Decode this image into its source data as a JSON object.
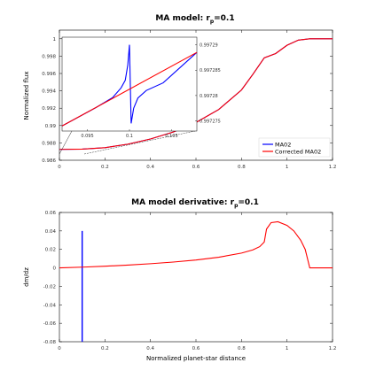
{
  "chart_data": [
    {
      "type": "line",
      "title": "MA model: r",
      "title_sub": "p",
      "title_suffix": "=0.1",
      "xlabel": "",
      "ylabel": "Normalized flux",
      "xlim": [
        0,
        1.2
      ],
      "ylim": [
        0.986,
        1.001
      ],
      "xticks": [
        "0",
        "0.2",
        "0.4",
        "0.6",
        "0.8",
        "1",
        "1.2"
      ],
      "yticks": [
        "0.986",
        "0.988",
        "0.99",
        "0.992",
        "0.994",
        "0.996",
        "0.998",
        "1"
      ],
      "yticks_values": [
        0.986,
        0.988,
        0.99,
        0.992,
        0.994,
        0.996,
        0.998,
        1.0
      ],
      "legend": {
        "position": "bottom-right",
        "entries": [
          {
            "name": "MA02",
            "color": "#0000ff"
          },
          {
            "name": "Corrected MA02",
            "color": "#ff0000"
          }
        ]
      },
      "series": [
        {
          "name": "MA02",
          "color": "#0000ff",
          "x": [
            0,
            0.1,
            0.2,
            0.3,
            0.4,
            0.5,
            0.6,
            0.7,
            0.8,
            0.85,
            0.9,
            0.95,
            1.0,
            1.05,
            1.1,
            1.2
          ],
          "y": [
            0.98725,
            0.98728,
            0.98745,
            0.98785,
            0.98845,
            0.98925,
            0.99035,
            0.99185,
            0.9941,
            0.9959,
            0.9978,
            0.9983,
            0.99925,
            0.99985,
            1.0,
            1.0
          ]
        },
        {
          "name": "Corrected MA02",
          "color": "#ff0000",
          "x": [
            0,
            0.1,
            0.2,
            0.3,
            0.4,
            0.5,
            0.6,
            0.7,
            0.8,
            0.85,
            0.9,
            0.95,
            1.0,
            1.05,
            1.1,
            1.2
          ],
          "y": [
            0.98725,
            0.98728,
            0.98745,
            0.98785,
            0.98845,
            0.98925,
            0.99035,
            0.99185,
            0.9941,
            0.9959,
            0.9978,
            0.9983,
            0.99925,
            0.99985,
            1.0,
            1.0
          ]
        }
      ],
      "inset": {
        "xticks": [
          "0.095",
          "0.1",
          "0.105"
        ],
        "yticks": [
          "0.997275",
          "0.99728",
          "0.997285",
          "0.99729"
        ],
        "xlim": [
          0.092,
          0.108
        ],
        "ylim": [
          0.997273,
          0.9972915
        ],
        "red_line": {
          "x": [
            0.092,
            0.108
          ],
          "y": [
            0.997274,
            0.9972885
          ]
        },
        "blue_line": {
          "x": [
            0.092,
            0.096,
            0.098,
            0.099,
            0.0995,
            0.0998,
            0.1,
            0.1002,
            0.1005,
            0.101,
            0.102,
            0.104,
            0.108
          ],
          "y": [
            0.997274,
            0.9972776,
            0.9972796,
            0.9972815,
            0.997283,
            0.997286,
            0.99729,
            0.9972745,
            0.9972775,
            0.9972795,
            0.997281,
            0.9972825,
            0.9972885
          ]
        }
      }
    },
    {
      "type": "line",
      "title": "MA model derivative: r",
      "title_sub": "p",
      "title_suffix": "=0.1",
      "xlabel": "Normalized planet-star distance",
      "ylabel": "dm/dz",
      "xlim": [
        0,
        1.2
      ],
      "ylim": [
        -0.08,
        0.06
      ],
      "xticks": [
        "0",
        "0.2",
        "0.4",
        "0.6",
        "0.8",
        "1",
        "1.2"
      ],
      "yticks": [
        "-0.08",
        "-0.06",
        "-0.04",
        "-0.02",
        "0",
        "0.02",
        "0.04",
        "0.06"
      ],
      "yticks_values": [
        -0.08,
        -0.06,
        -0.04,
        -0.02,
        0,
        0.02,
        0.04,
        0.06
      ],
      "series": [
        {
          "name": "MA02",
          "color": "#0000ff",
          "x": [
            0.1,
            0.1
          ],
          "y": [
            -0.08,
            0.04
          ]
        },
        {
          "name": "Corrected MA02",
          "color": "#ff0000",
          "x": [
            0,
            0.1,
            0.2,
            0.3,
            0.4,
            0.5,
            0.6,
            0.7,
            0.8,
            0.85,
            0.88,
            0.9,
            0.91,
            0.93,
            0.96,
            1.0,
            1.03,
            1.06,
            1.08,
            1.1,
            1.2
          ],
          "y": [
            0,
            0.0008,
            0.0018,
            0.003,
            0.0045,
            0.0063,
            0.0085,
            0.0115,
            0.016,
            0.0195,
            0.023,
            0.028,
            0.042,
            0.049,
            0.05,
            0.046,
            0.04,
            0.03,
            0.02,
            0,
            0
          ]
        }
      ]
    }
  ]
}
